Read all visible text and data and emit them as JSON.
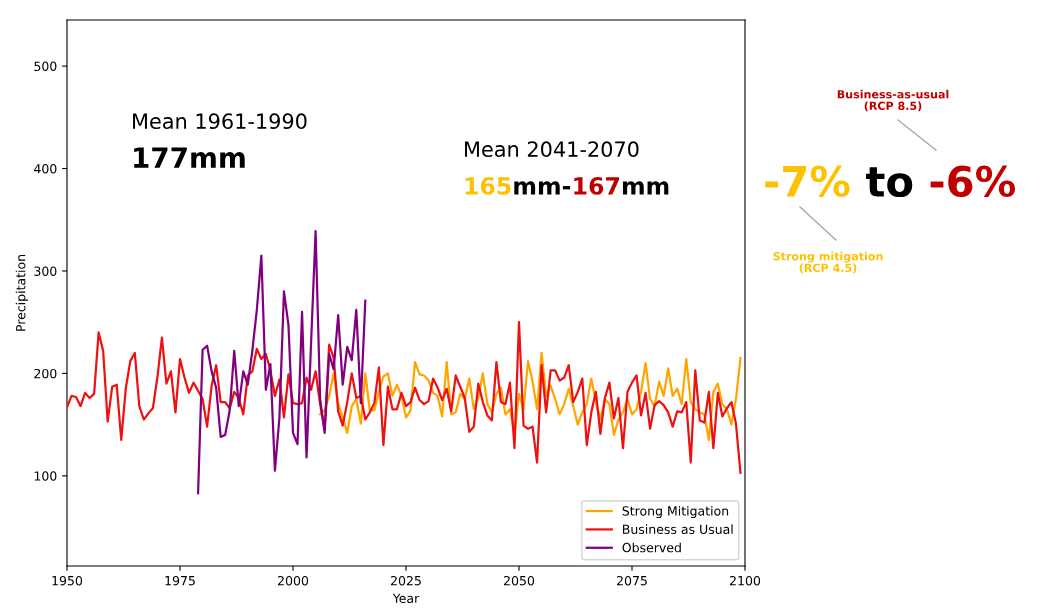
{
  "chart_data": {
    "type": "line",
    "xlabel": "Year",
    "ylabel": "Precipitation",
    "xlim": [
      1950,
      2100
    ],
    "xticks": [
      1950,
      1975,
      2000,
      2025,
      2050,
      2075,
      2100
    ],
    "ylim": [
      12,
      545
    ],
    "yticks": [
      100,
      200,
      300,
      400,
      500
    ],
    "grid": false,
    "legend": "bottom right",
    "line_style": "solid",
    "marker": "none",
    "series": [
      {
        "name": "Strong Mitigation",
        "color": "#ffa500",
        "x": [
          2006,
          2007,
          2008,
          2009,
          2010,
          2011,
          2012,
          2013,
          2014,
          2015,
          2016,
          2017,
          2018,
          2019,
          2020,
          2021,
          2022,
          2023,
          2024,
          2025,
          2026,
          2027,
          2028,
          2029,
          2030,
          2031,
          2032,
          2033,
          2034,
          2035,
          2036,
          2037,
          2038,
          2039,
          2040,
          2041,
          2042,
          2043,
          2044,
          2045,
          2046,
          2047,
          2048,
          2049,
          2050,
          2051,
          2052,
          2053,
          2054,
          2055,
          2056,
          2057,
          2058,
          2059,
          2060,
          2061,
          2062,
          2063,
          2064,
          2065,
          2066,
          2067,
          2068,
          2069,
          2070,
          2071,
          2072,
          2073,
          2074,
          2075,
          2076,
          2077,
          2078,
          2079,
          2080,
          2081,
          2082,
          2083,
          2084,
          2085,
          2086,
          2087,
          2088,
          2089,
          2090,
          2091,
          2092,
          2093,
          2094,
          2095,
          2096,
          2097,
          2098,
          2099
        ],
        "values": [
          160,
          164,
          178,
          200,
          171,
          157,
          142,
          168,
          175,
          151,
          200,
          164,
          164,
          182,
          197,
          200,
          178,
          189,
          178,
          157,
          164,
          211,
          199,
          198,
          193,
          181,
          178,
          158,
          211,
          160,
          162,
          180,
          175,
          195,
          165,
          176,
          200,
          170,
          162,
          180,
          186,
          160,
          165,
          140,
          180,
          165,
          212,
          192,
          165,
          220,
          178,
          188,
          175,
          160,
          170,
          185,
          168,
          150,
          162,
          170,
          195,
          172,
          155,
          175,
          170,
          140,
          155,
          162,
          175,
          160,
          165,
          182,
          210,
          175,
          168,
          192,
          178,
          205,
          178,
          185,
          170,
          214,
          172,
          165,
          162,
          160,
          135,
          182,
          190,
          170,
          165,
          150,
          175,
          215
        ]
      },
      {
        "name": "Business as Usual",
        "color": "#ee1111",
        "x": [
          1950,
          1951,
          1952,
          1953,
          1954,
          1955,
          1956,
          1957,
          1958,
          1959,
          1960,
          1961,
          1962,
          1963,
          1964,
          1965,
          1966,
          1967,
          1968,
          1969,
          1970,
          1971,
          1972,
          1973,
          1974,
          1975,
          1976,
          1977,
          1978,
          1979,
          1980,
          1981,
          1982,
          1983,
          1984,
          1985,
          1986,
          1987,
          1988,
          1989,
          1990,
          1991,
          1992,
          1993,
          1994,
          1995,
          1996,
          1997,
          1998,
          1999,
          2000,
          2001,
          2002,
          2003,
          2004,
          2005,
          2006,
          2007,
          2008,
          2009,
          2010,
          2011,
          2012,
          2013,
          2014,
          2015,
          2016,
          2017,
          2018,
          2019,
          2020,
          2021,
          2022,
          2023,
          2024,
          2025,
          2026,
          2027,
          2028,
          2029,
          2030,
          2031,
          2032,
          2033,
          2034,
          2035,
          2036,
          2037,
          2038,
          2039,
          2040,
          2041,
          2042,
          2043,
          2044,
          2045,
          2046,
          2047,
          2048,
          2049,
          2050,
          2051,
          2052,
          2053,
          2054,
          2055,
          2056,
          2057,
          2058,
          2059,
          2060,
          2061,
          2062,
          2063,
          2064,
          2065,
          2066,
          2067,
          2068,
          2069,
          2070,
          2071,
          2072,
          2073,
          2074,
          2075,
          2076,
          2077,
          2078,
          2079,
          2080,
          2081,
          2082,
          2083,
          2084,
          2085,
          2086,
          2087,
          2088,
          2089,
          2090,
          2091,
          2092,
          2093,
          2094,
          2095,
          2096,
          2097,
          2098,
          2099
        ],
        "values": [
          167,
          178,
          177,
          168,
          181,
          176,
          180,
          240,
          222,
          153,
          187,
          189,
          135,
          185,
          212,
          220,
          168,
          155,
          161,
          166,
          196,
          235,
          190,
          202,
          162,
          214,
          196,
          181,
          191,
          183,
          175,
          148,
          188,
          208,
          172,
          172,
          166,
          182,
          176,
          160,
          198,
          202,
          224,
          214,
          219,
          203,
          178,
          194,
          157,
          199,
          171,
          170,
          171,
          196,
          184,
          202,
          170,
          145,
          228,
          215,
          163,
          149,
          172,
          200,
          176,
          178,
          155,
          162,
          171,
          206,
          130,
          187,
          165,
          165,
          181,
          168,
          172,
          186,
          174,
          170,
          173,
          195,
          186,
          174,
          185,
          163,
          198,
          187,
          176,
          143,
          148,
          190,
          172,
          159,
          154,
          211,
          172,
          170,
          191,
          127,
          250,
          149,
          146,
          148,
          113,
          208,
          162,
          203,
          203,
          193,
          196,
          208,
          172,
          182,
          195,
          130,
          162,
          182,
          141,
          176,
          191,
          156,
          176,
          127,
          182,
          191,
          198,
          159,
          181,
          146,
          169,
          173,
          169,
          162,
          148,
          163,
          162,
          172,
          113,
          203,
          154,
          152,
          182,
          127,
          181,
          158,
          166,
          172,
          151,
          103
        ]
      },
      {
        "name": "Observed",
        "color": "#800080",
        "x": [
          1979,
          1980,
          1981,
          1982,
          1983,
          1984,
          1985,
          1986,
          1987,
          1988,
          1989,
          1990,
          1991,
          1992,
          1993,
          1994,
          1995,
          1996,
          1997,
          1998,
          1999,
          2000,
          2001,
          2002,
          2003,
          2004,
          2005,
          2006,
          2007,
          2008,
          2009,
          2010,
          2011,
          2012,
          2013,
          2014,
          2015,
          2016
        ],
        "values": [
          83,
          223,
          227,
          202,
          186,
          138,
          140,
          164,
          222,
          168,
          202,
          189,
          222,
          262,
          315,
          184,
          209,
          105,
          157,
          280,
          247,
          142,
          131,
          260,
          118,
          230,
          339,
          175,
          142,
          219,
          204,
          257,
          189,
          226,
          213,
          262,
          171,
          271
        ]
      }
    ],
    "annotations": [
      "Mean 1961-1990",
      "177mm",
      "Mean 2041-2070",
      "165",
      "mm-",
      "167",
      "mm",
      "-7%",
      " to ",
      "-6%",
      "Business-as-usual\n(RCP 8.5)",
      "Strong mitigation\n(RCP 4.5)"
    ]
  }
}
